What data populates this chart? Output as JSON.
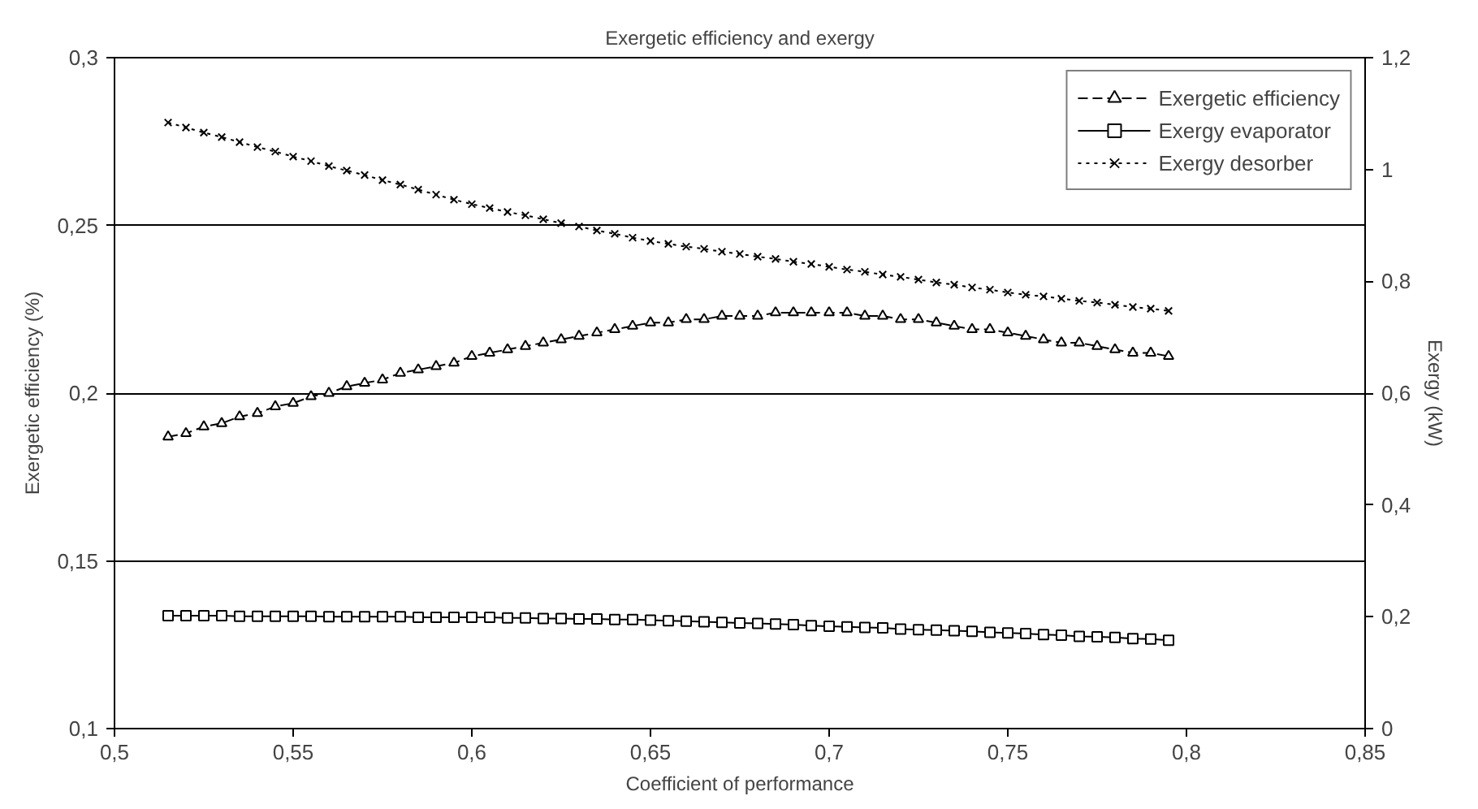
{
  "chart_data": {
    "type": "line",
    "title": "Exergetic efficiency and exergy",
    "xlabel": "Coefficient of performance",
    "ylabel": "Exergetic efficiency (%)",
    "y2label": "Exergy (kW)",
    "x": [
      0.515,
      0.52,
      0.525,
      0.53,
      0.535,
      0.54,
      0.545,
      0.55,
      0.555,
      0.56,
      0.565,
      0.57,
      0.575,
      0.58,
      0.585,
      0.59,
      0.595,
      0.6,
      0.605,
      0.61,
      0.615,
      0.62,
      0.625,
      0.63,
      0.635,
      0.64,
      0.645,
      0.65,
      0.655,
      0.66,
      0.665,
      0.67,
      0.675,
      0.68,
      0.685,
      0.69,
      0.695,
      0.7,
      0.705,
      0.71,
      0.715,
      0.72,
      0.725,
      0.73,
      0.735,
      0.74,
      0.745,
      0.75,
      0.755,
      0.76,
      0.765,
      0.77,
      0.775,
      0.78,
      0.785,
      0.79,
      0.795
    ],
    "series": [
      {
        "name": "Exergetic efficiency",
        "color": "#000000",
        "marker": "triangle",
        "line_style": "dashed",
        "values": [
          0.187,
          0.188,
          0.19,
          0.191,
          0.193,
          0.194,
          0.196,
          0.197,
          0.199,
          0.2,
          0.202,
          0.203,
          0.204,
          0.206,
          0.207,
          0.208,
          0.209,
          0.211,
          0.212,
          0.213,
          0.214,
          0.215,
          0.216,
          0.217,
          0.218,
          0.219,
          0.22,
          0.221,
          0.221,
          0.222,
          0.222,
          0.223,
          0.223,
          0.223,
          0.224,
          0.224,
          0.224,
          0.224,
          0.224,
          0.223,
          0.223,
          0.222,
          0.222,
          0.221,
          0.22,
          0.219,
          0.219,
          0.218,
          0.217,
          0.216,
          0.215,
          0.215,
          0.214,
          0.213,
          0.212,
          0.212,
          0.211
        ]
      },
      {
        "name": "Exergy evaporator",
        "color": "#000000",
        "marker": "square",
        "line_style": "solid",
        "axis": "y2",
        "values": [
          0.202,
          0.202,
          0.202,
          0.202,
          0.201,
          0.201,
          0.201,
          0.201,
          0.201,
          0.2,
          0.2,
          0.2,
          0.2,
          0.2,
          0.199,
          0.199,
          0.199,
          0.199,
          0.199,
          0.198,
          0.198,
          0.197,
          0.197,
          0.196,
          0.196,
          0.195,
          0.195,
          0.194,
          0.193,
          0.192,
          0.191,
          0.19,
          0.189,
          0.188,
          0.187,
          0.186,
          0.184,
          0.183,
          0.182,
          0.181,
          0.18,
          0.178,
          0.177,
          0.176,
          0.175,
          0.174,
          0.172,
          0.171,
          0.17,
          0.168,
          0.167,
          0.165,
          0.164,
          0.163,
          0.161,
          0.16,
          0.158
        ]
      },
      {
        "name": "Exergy desorber",
        "color": "#000000",
        "marker": "cross",
        "line_style": "dotted",
        "axis": "y2",
        "values": [
          1.084,
          1.075,
          1.066,
          1.058,
          1.049,
          1.04,
          1.032,
          1.023,
          1.015,
          1.006,
          0.998,
          0.99,
          0.981,
          0.973,
          0.964,
          0.955,
          0.946,
          0.938,
          0.931,
          0.924,
          0.918,
          0.911,
          0.904,
          0.898,
          0.891,
          0.885,
          0.878,
          0.872,
          0.867,
          0.862,
          0.858,
          0.853,
          0.849,
          0.844,
          0.84,
          0.835,
          0.831,
          0.826,
          0.821,
          0.817,
          0.812,
          0.808,
          0.803,
          0.798,
          0.794,
          0.789,
          0.785,
          0.78,
          0.776,
          0.773,
          0.769,
          0.765,
          0.762,
          0.758,
          0.754,
          0.751,
          0.747
        ]
      }
    ],
    "xlim": [
      0.5,
      0.85
    ],
    "xticks": [
      {
        "value": 0.5,
        "label": "0,5"
      },
      {
        "value": 0.55,
        "label": "0,55"
      },
      {
        "value": 0.6,
        "label": "0,6"
      },
      {
        "value": 0.65,
        "label": "0,65"
      },
      {
        "value": 0.7,
        "label": "0,7"
      },
      {
        "value": 0.75,
        "label": "0,75"
      },
      {
        "value": 0.8,
        "label": "0,8"
      },
      {
        "value": 0.85,
        "label": "0,85"
      }
    ],
    "ylim": [
      0.1,
      0.3
    ],
    "yticks": [
      {
        "value": 0.1,
        "label": "0,1"
      },
      {
        "value": 0.15,
        "label": "0,15"
      },
      {
        "value": 0.2,
        "label": "0,2"
      },
      {
        "value": 0.25,
        "label": "0,25"
      },
      {
        "value": 0.3,
        "label": "0,3"
      }
    ],
    "y2lim": [
      0,
      1.2
    ],
    "y2ticks": [
      0,
      {
        "value": 0.2,
        "label": "0,2"
      },
      {
        "value": 0.4,
        "label": "0,4"
      },
      {
        "value": 0.6,
        "label": "0,6"
      },
      {
        "value": 0.8,
        "label": "0,8"
      },
      1,
      {
        "value": 1.2,
        "label": "1,2"
      }
    ],
    "grid": "y",
    "legend": "top right"
  }
}
